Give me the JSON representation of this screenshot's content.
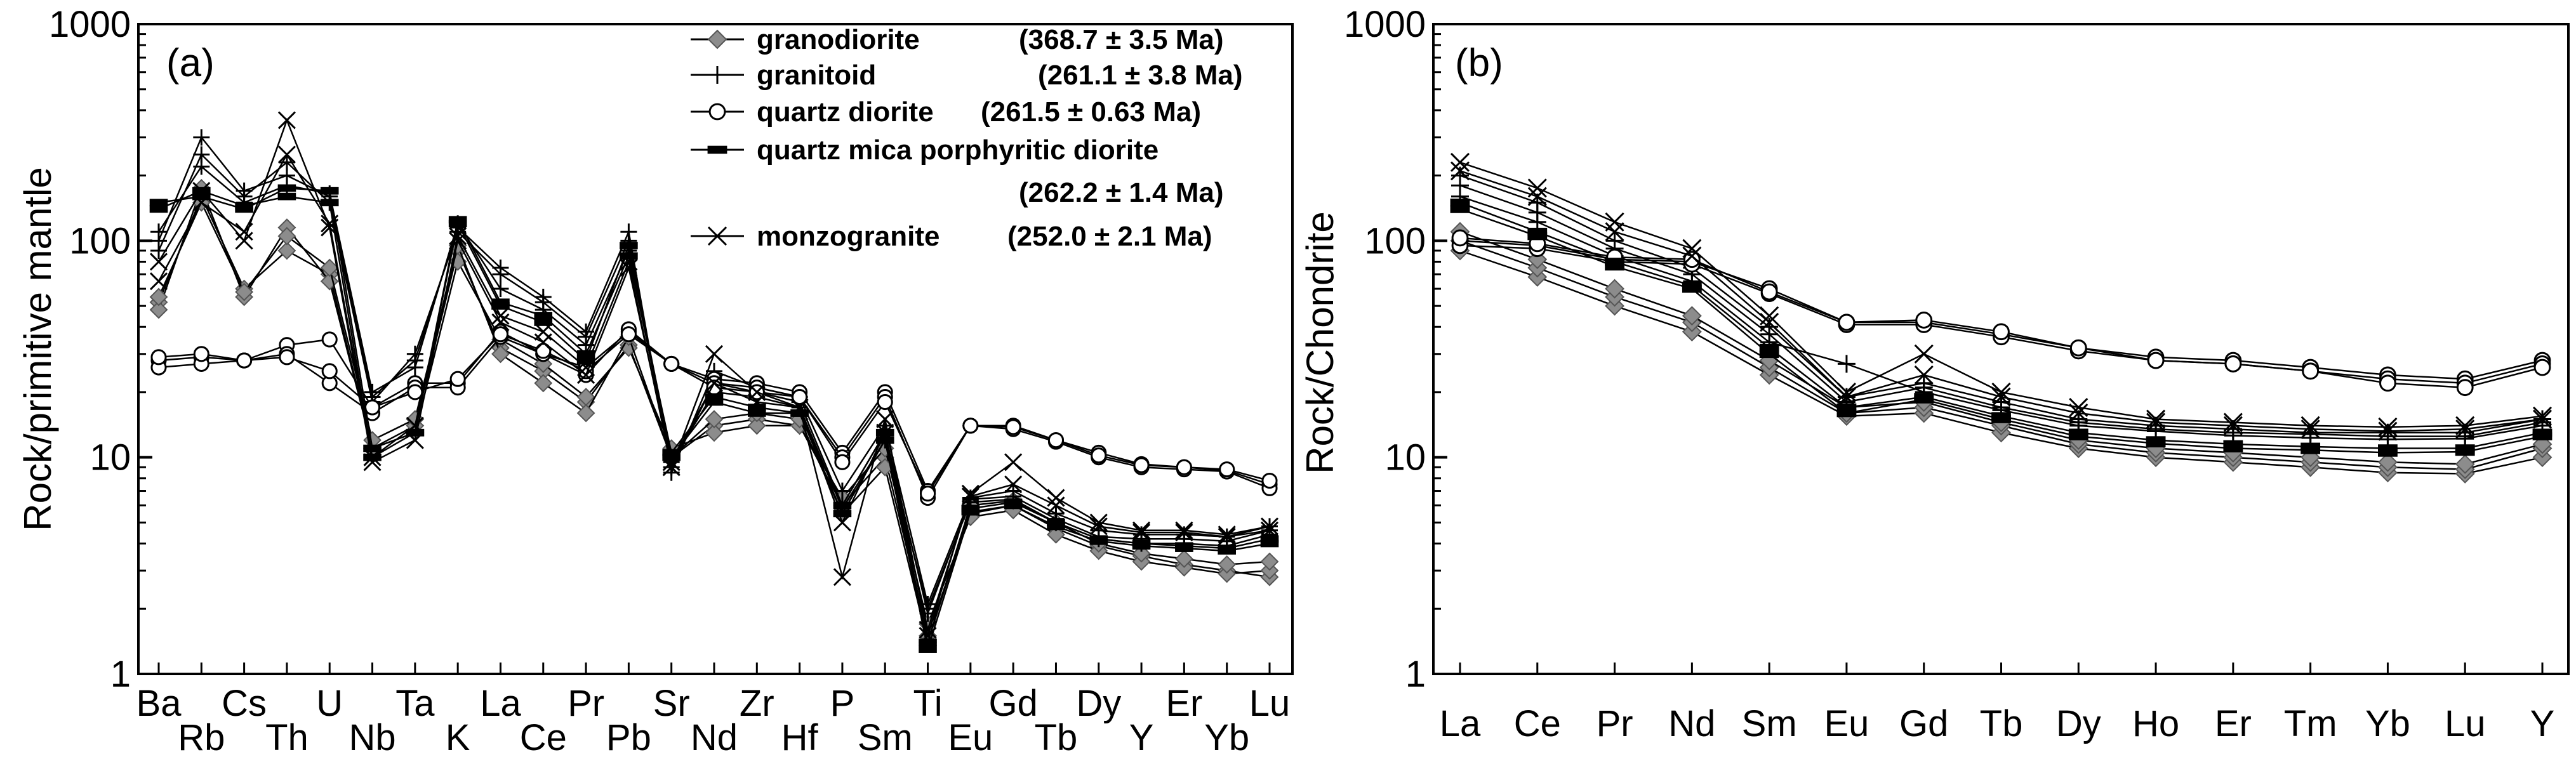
{
  "figure": {
    "legend_entries": [
      {
        "name": "granodiorite",
        "age": "(368.7 ± 3.5 Ma)",
        "marker": "diamond-gray"
      },
      {
        "name": "granitoid",
        "age": "(261.1 ± 3.8 Ma)",
        "marker": "plus"
      },
      {
        "name": "quartz diorite",
        "age": "(261.5 ± 0.63 Ma)",
        "marker": "circle-open"
      },
      {
        "name": "quartz mica porphyritic diorite",
        "age": "(262.2 ± 1.4 Ma)",
        "marker": "dash-thick"
      },
      {
        "name": "monzogranite",
        "age": "(252.0 ± 2.1 Ma)",
        "marker": "cross"
      }
    ],
    "colors": {
      "line": "#000000",
      "granodiorite_fill": "#8c8c8c",
      "background": "#ffffff"
    }
  },
  "chart_data": [
    {
      "type": "line",
      "panel_label": "(a)",
      "title": "",
      "xlabel": "",
      "ylabel": "Rock/primitive mantle",
      "yscale": "log",
      "ylim": [
        1,
        1000
      ],
      "yticks": [
        1,
        10,
        100,
        1000
      ],
      "ytick_labels": [
        "1",
        "10",
        "100",
        "1000"
      ],
      "categories": [
        "Ba",
        "Rb",
        "Cs",
        "Th",
        "U",
        "Nb",
        "Ta",
        "K",
        "La",
        "Ce",
        "Pr",
        "Pb",
        "Sr",
        "Nd",
        "Zr",
        "Hf",
        "P",
        "Sm",
        "Ti",
        "Eu",
        "Gd",
        "Tb",
        "Dy",
        "Y",
        "Er",
        "Yb",
        "Lu"
      ],
      "series": [
        {
          "name": "granodiorite",
          "values": [
            52,
            160,
            60,
            90,
            70,
            11,
            14,
            90,
            32,
            25,
            18,
            33,
            10,
            14,
            15,
            14,
            6,
            10,
            1.5,
            5.5,
            6,
            4.7,
            3.9,
            3.5,
            3.2,
            3.0,
            2.8
          ]
        },
        {
          "name": "granodiorite",
          "values": [
            48,
            175,
            55,
            115,
            65,
            11,
            13,
            80,
            35,
            27,
            19,
            32,
            11,
            13,
            14,
            14,
            6.5,
            11,
            1.7,
            5.3,
            5.7,
            4.4,
            3.7,
            3.3,
            3.1,
            2.9,
            3.0
          ]
        },
        {
          "name": "granodiorite",
          "values": [
            55,
            150,
            58,
            105,
            75,
            12,
            15,
            95,
            30,
            22,
            16,
            36,
            10,
            15,
            16,
            15,
            5.5,
            9,
            1.4,
            6,
            6.3,
            5,
            4,
            3.6,
            3.4,
            3.2,
            3.3
          ]
        },
        {
          "name": "granitoid",
          "values": [
            100,
            300,
            170,
            200,
            160,
            19,
            28,
            115,
            75,
            55,
            38,
            110,
            8.5,
            25,
            21,
            19,
            7,
            14,
            2.1,
            6.5,
            7,
            5.5,
            4.6,
            4.4,
            4.4,
            4.3,
            4.8
          ]
        },
        {
          "name": "granitoid",
          "values": [
            90,
            250,
            160,
            230,
            150,
            18,
            30,
            110,
            70,
            52,
            36,
            100,
            9,
            22,
            20,
            18,
            6,
            13,
            1.9,
            6.4,
            6.6,
            5.2,
            4.3,
            4.2,
            4.2,
            4.1,
            4.6
          ]
        },
        {
          "name": "granitoid",
          "values": [
            110,
            220,
            150,
            180,
            165,
            20,
            26,
            120,
            60,
            48,
            33,
            90,
            9.5,
            20,
            19,
            17,
            5.8,
            12,
            2,
            6.2,
            6.4,
            5,
            4.2,
            4,
            4,
            3.9,
            4.4
          ]
        },
        {
          "name": "quartz diorite",
          "values": [
            28,
            29,
            28,
            33,
            35,
            17,
            22,
            22,
            38,
            30,
            26,
            38,
            27,
            23,
            22,
            20,
            10.5,
            20,
            7,
            14,
            14,
            12,
            10.5,
            9.3,
            9,
            8.7,
            7.5
          ]
        },
        {
          "name": "quartz diorite",
          "values": [
            26,
            27,
            28,
            30,
            22,
            16,
            21,
            21,
            36,
            30,
            24,
            39,
            27,
            22,
            21,
            19,
            10,
            19,
            6.5,
            14,
            13.5,
            11.8,
            10,
            9,
            8.8,
            8.6,
            7.2
          ]
        },
        {
          "name": "quartz diorite",
          "values": [
            29,
            30,
            28,
            29,
            25,
            17,
            20,
            23,
            37,
            31,
            25,
            37,
            27,
            21,
            20,
            19,
            9.5,
            18,
            6.8,
            14,
            13.8,
            12,
            10.2,
            9.2,
            9,
            8.8,
            7.8
          ]
        },
        {
          "name": "quartz mica porphyritic diorite",
          "values": [
            150,
            160,
            140,
            175,
            170,
            11,
            13,
            120,
            50,
            42,
            28,
            95,
            10,
            18,
            16,
            16,
            6,
            13,
            1.4,
            5.8,
            6.2,
            5,
            4.2,
            4,
            3.9,
            3.8,
            4.2
          ]
        },
        {
          "name": "quartz mica porphyritic diorite",
          "values": [
            140,
            170,
            145,
            160,
            150,
            10,
            13,
            125,
            52,
            45,
            30,
            85,
            10.5,
            19,
            17,
            16,
            5.5,
            12,
            1.3,
            5.6,
            6,
            4.8,
            4.1,
            3.9,
            3.8,
            3.7,
            4
          ]
        },
        {
          "name": "monzogranite",
          "values": [
            80,
            170,
            100,
            360,
            115,
            9.5,
            12,
            105,
            45,
            38,
            26,
            80,
            9,
            30,
            20,
            17,
            2.8,
            15,
            1.5,
            6.8,
            9.5,
            6.5,
            5,
            4.6,
            4.6,
            4.4,
            4.8
          ]
        },
        {
          "name": "monzogranite",
          "values": [
            65,
            150,
            110,
            250,
            120,
            10,
            14,
            100,
            42,
            34,
            24,
            75,
            9.5,
            22,
            18,
            17,
            5,
            13,
            1.6,
            6.6,
            7.5,
            6,
            4.8,
            4.5,
            4.5,
            4.3,
            4.6
          ]
        }
      ]
    },
    {
      "type": "line",
      "panel_label": "(b)",
      "title": "",
      "xlabel": "",
      "ylabel": "Rock/Chondrite",
      "yscale": "log",
      "ylim": [
        1,
        1000
      ],
      "yticks": [
        1,
        10,
        100,
        1000
      ],
      "ytick_labels": [
        "1",
        "10",
        "100",
        "1000"
      ],
      "categories": [
        "La",
        "Ce",
        "Pr",
        "Nd",
        "Sm",
        "Eu",
        "Gd",
        "Tb",
        "Dy",
        "Ho",
        "Er",
        "Tm",
        "Yb",
        "Lu",
        "Y"
      ],
      "series": [
        {
          "name": "granodiorite",
          "values": [
            90,
            68,
            50,
            38,
            24,
            15.5,
            16,
            13,
            11,
            10,
            9.5,
            9,
            8.5,
            8.4,
            10
          ]
        },
        {
          "name": "granodiorite",
          "values": [
            100,
            75,
            55,
            42,
            26,
            16,
            17,
            14,
            11.5,
            10.5,
            10,
            9.5,
            9,
            8.8,
            11
          ]
        },
        {
          "name": "granodiorite",
          "values": [
            110,
            82,
            60,
            45,
            28,
            17,
            18,
            14.5,
            12,
            11,
            10.5,
            10,
            9.5,
            9.3,
            11.5
          ]
        },
        {
          "name": "granitoid",
          "values": [
            200,
            150,
            100,
            75,
            40,
            19,
            22,
            18,
            15,
            14,
            13.5,
            13,
            13,
            13,
            15
          ]
        },
        {
          "name": "granitoid",
          "values": [
            180,
            135,
            92,
            70,
            37,
            18,
            21,
            17,
            14.5,
            13.5,
            13,
            12.8,
            12.5,
            12.5,
            14.5
          ]
        },
        {
          "name": "granitoid",
          "values": [
            160,
            122,
            85,
            65,
            34,
            27,
            20,
            16.5,
            14,
            13.2,
            12.6,
            12.3,
            12.1,
            12.2,
            14
          ]
        },
        {
          "name": "quartz diorite",
          "values": [
            100,
            95,
            82,
            80,
            60,
            42,
            42,
            37,
            32,
            29,
            28,
            26,
            24,
            23,
            28
          ]
        },
        {
          "name": "quartz diorite",
          "values": [
            95,
            92,
            80,
            78,
            57,
            41,
            41,
            36,
            31,
            28,
            27,
            25,
            23,
            22,
            27
          ]
        },
        {
          "name": "quartz diorite",
          "values": [
            103,
            97,
            84,
            82,
            58,
            42,
            43,
            38,
            32,
            28,
            27,
            25,
            22,
            21,
            26
          ]
        },
        {
          "name": "quartz mica porphyritic diorite",
          "values": [
            150,
            110,
            80,
            62,
            32,
            17,
            19,
            15.5,
            13,
            12,
            11.5,
            11.2,
            11,
            11,
            13
          ]
        },
        {
          "name": "quartz mica porphyritic diorite",
          "values": [
            140,
            105,
            76,
            60,
            30,
            16,
            18.5,
            15,
            12.5,
            11.6,
            11,
            10.8,
            10.5,
            10.6,
            12.5
          ]
        },
        {
          "name": "monzogranite",
          "values": [
            230,
            175,
            122,
            92,
            45,
            20,
            30,
            20,
            17,
            15,
            14.5,
            14,
            13.8,
            14,
            15.5
          ]
        },
        {
          "name": "monzogranite",
          "values": [
            210,
            160,
            110,
            85,
            42,
            19,
            24,
            19,
            16,
            14.5,
            14,
            13.5,
            13.2,
            13.5,
            15
          ]
        }
      ]
    }
  ]
}
